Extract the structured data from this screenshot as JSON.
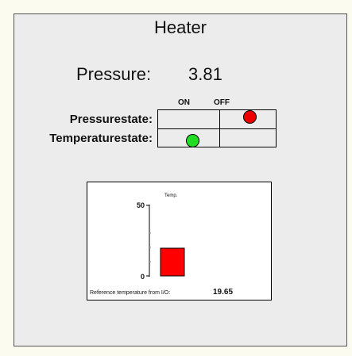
{
  "title": "Heater",
  "pressure": {
    "label": "Pressure:",
    "value": "3.81"
  },
  "columns": {
    "on": "ON",
    "off": "OFF"
  },
  "rows": {
    "pressurestate": {
      "label": "Pressurestate:",
      "state": "OFF",
      "color": "#ee0000"
    },
    "temperaturestate": {
      "label": "Temperaturestate:",
      "state": "ON",
      "color": "#22dd22"
    }
  },
  "chart_data": {
    "type": "bar",
    "title": "Temp.",
    "ylim": [
      0,
      50
    ],
    "yticks": [
      "50",
      "0"
    ],
    "values": [
      19.65
    ],
    "bar_color": "#ff0000"
  },
  "reference": {
    "label": "Reference temperature from I/O:",
    "value": "19.65"
  }
}
